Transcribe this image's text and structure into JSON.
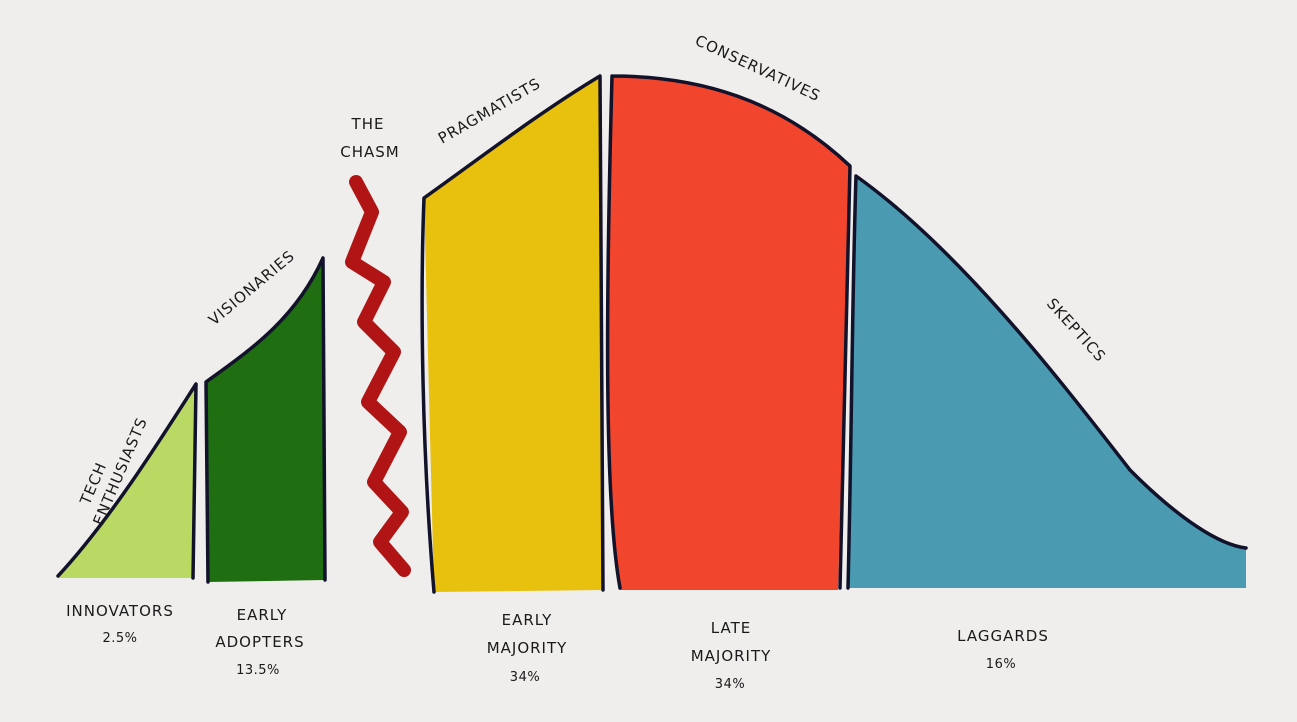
{
  "colors": {
    "background": "#efeeec",
    "innovators": "#b9d964",
    "early_adopters": "#1f6e12",
    "chasm": "#b01414",
    "early_majority": "#e8c00e",
    "late_majority": "#f2452d",
    "laggards": "#4a9bb1",
    "outline": "#12122a"
  },
  "segments": [
    {
      "name": "INNOVATORS",
      "percent": "2.5%",
      "persona": [
        "TECH",
        "ENTHUSIASTS"
      ]
    },
    {
      "name": [
        "EARLY",
        "ADOPTERS"
      ],
      "percent": "13.5%",
      "persona": [
        "VISIONARIES"
      ]
    },
    {
      "name": [
        "EARLY",
        "MAJORITY"
      ],
      "percent": "34%",
      "persona": [
        "PRAGMATISTS"
      ]
    },
    {
      "name": [
        "LATE",
        "MAJORITY"
      ],
      "percent": "34%",
      "persona": [
        "CONSERVATIVES"
      ]
    },
    {
      "name": "LAGGARDS",
      "percent": "16%",
      "persona": [
        "SKEPTICS"
      ]
    }
  ],
  "chasm": {
    "label": [
      "THE",
      "CHASM"
    ]
  }
}
